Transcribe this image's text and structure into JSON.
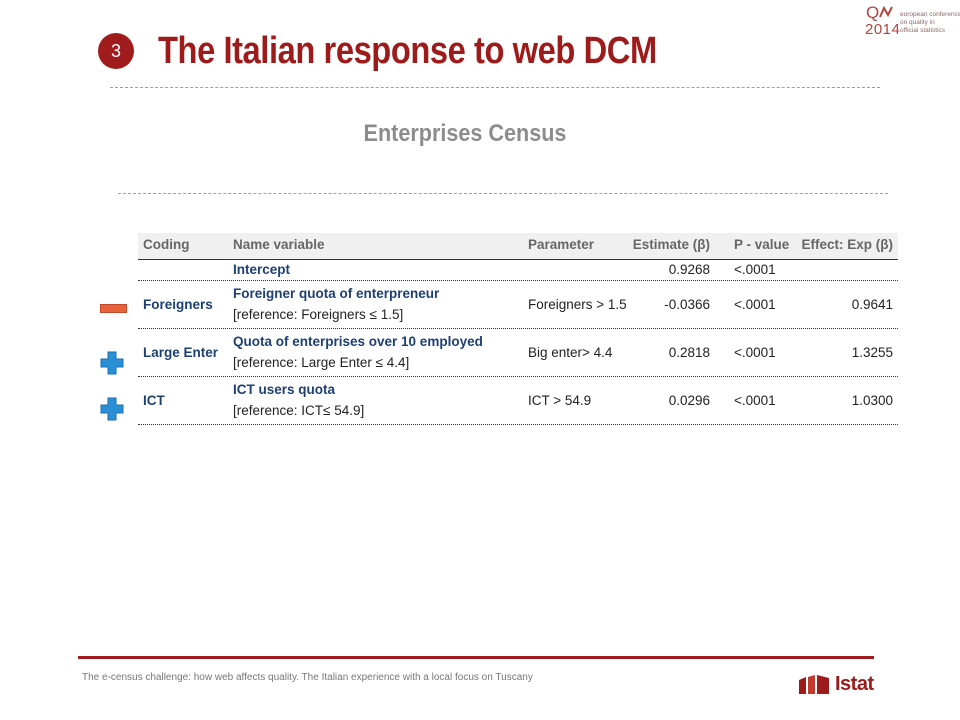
{
  "slide": {
    "number": "3",
    "title": "The Italian response to web DCM",
    "subtitle": "Enterprises Census"
  },
  "conference_logo": {
    "mark": "Q",
    "year": "2014",
    "tagline": [
      "european conference",
      "on quality in",
      "official statistics"
    ]
  },
  "table": {
    "headers": {
      "coding": "Coding",
      "name": "Name variable",
      "parameter": "Parameter",
      "estimate": "Estimate (β)",
      "pvalue": "P - value",
      "effect": "Effect: Exp (β)"
    },
    "rows": [
      {
        "coding": "",
        "name": "Intercept",
        "reference": "",
        "parameter": "",
        "estimate": "0.9268",
        "pvalue": "<.0001",
        "effect": ""
      },
      {
        "coding": "Foreigners",
        "name": "Foreigner quota of enterpreneur",
        "reference": "[reference: Foreigners ≤ 1.5]",
        "parameter": "Foreigners > 1.5",
        "estimate": "-0.0366",
        "pvalue": "<.0001",
        "effect": "0.9641",
        "sign": "minus"
      },
      {
        "coding": "Large Enter",
        "name": "Quota of enterprises over 10 employed",
        "reference": "[reference: Large Enter ≤ 4.4]",
        "parameter": "Big enter> 4.4",
        "estimate": "0.2818",
        "pvalue": "<.0001",
        "effect": "1.3255",
        "sign": "plus"
      },
      {
        "coding": "ICT",
        "name": "ICT users quota",
        "reference": "[reference: ICT≤ 54.9]",
        "parameter": "ICT > 54.9",
        "estimate": "0.0296",
        "pvalue": "<.0001",
        "effect": "1.0300",
        "sign": "plus"
      }
    ]
  },
  "colors": {
    "accent": "#9e1b1b",
    "header_text": "#666666",
    "variable_text": "#1e3f73",
    "minus": "#e8623c",
    "plus": "#2b8fd6"
  },
  "footer": {
    "text": "The e-census challenge: how web affects quality. The Italian experience with a local focus on Tuscany",
    "logo": "Istat"
  }
}
